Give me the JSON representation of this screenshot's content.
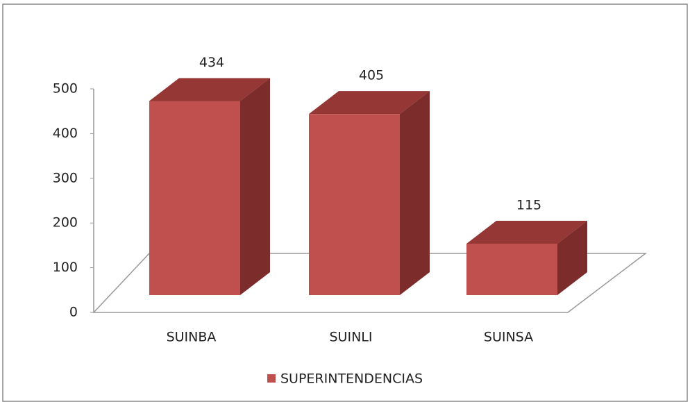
{
  "chart_data": {
    "type": "bar3d",
    "categories": [
      "SUINBA",
      "SUINLI",
      "SUINSA"
    ],
    "series": [
      {
        "name": "SUPERINTENDENCIAS",
        "color": "#c0504d",
        "values": [
          434,
          405,
          115
        ]
      }
    ],
    "ylim": [
      0,
      500
    ],
    "yticks": [
      0,
      100,
      200,
      300,
      400,
      500
    ],
    "legend": "bottom"
  }
}
